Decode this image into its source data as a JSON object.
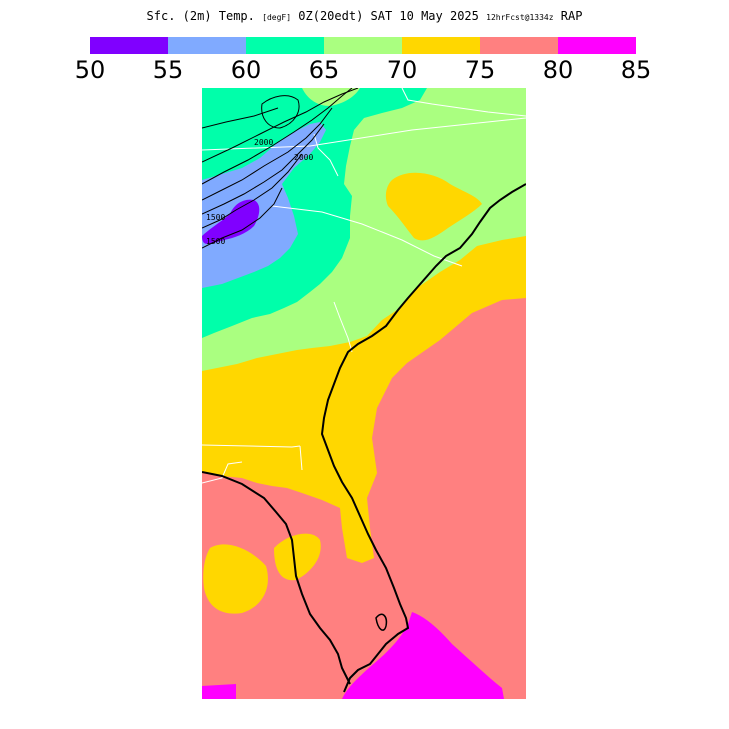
{
  "title": {
    "main": "Sfc. (2m) Temp.",
    "units": "[degF]",
    "valid_time": "0Z(20edt) SAT 10 May 2025",
    "forecast": "12hrFcst@1334z",
    "model": "RAP"
  },
  "colorbar": {
    "segments": [
      {
        "range": "50-55",
        "color": "#8000ff"
      },
      {
        "range": "55-60",
        "color": "#80aaff"
      },
      {
        "range": "60-65",
        "color": "#00ffaa"
      },
      {
        "range": "65-70",
        "color": "#aaff80"
      },
      {
        "range": "70-75",
        "color": "#ffd700"
      },
      {
        "range": "75-80",
        "color": "#ff8080"
      },
      {
        "range": "80-85",
        "color": "#ff00ff"
      }
    ],
    "labels": [
      "50",
      "55",
      "60",
      "65",
      "70",
      "75",
      "80",
      "85"
    ]
  },
  "map": {
    "contour_labels": [
      "2000",
      "2000",
      "1500",
      "1500"
    ],
    "palette": {
      "band_50_55": "#8000ff",
      "band_55_60": "#80aaff",
      "band_60_65": "#00ffaa",
      "band_65_70": "#aaff80",
      "band_70_75": "#ffd700",
      "band_75_80": "#ff8080",
      "band_80_85": "#ff00ff",
      "borders": "#ffffff",
      "coastline": "#000000"
    }
  }
}
